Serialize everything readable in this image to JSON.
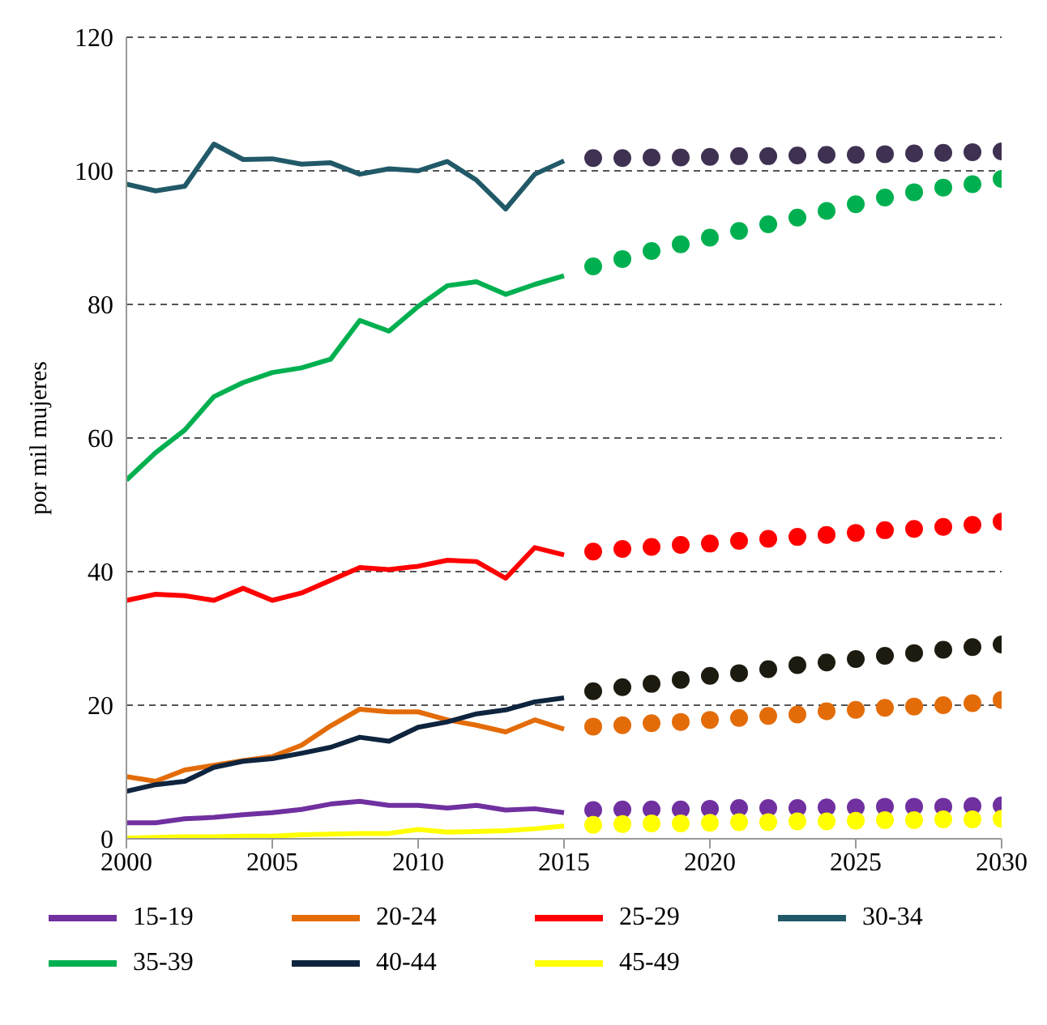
{
  "chart_data": {
    "type": "line",
    "ylabel": "por mil mujeres",
    "xlim": [
      2000,
      2030
    ],
    "xticks": [
      2000,
      2005,
      2010,
      2015,
      2020,
      2025,
      2030
    ],
    "ylim": [
      0,
      120
    ],
    "yticks": [
      0,
      20,
      40,
      60,
      80,
      100,
      120
    ],
    "grid": "y",
    "legend": "bottom",
    "x": [
      2000,
      2001,
      2002,
      2003,
      2004,
      2005,
      2006,
      2007,
      2008,
      2009,
      2010,
      2011,
      2012,
      2013,
      2014,
      2015
    ],
    "series": [
      {
        "name": "15-19",
        "color": "#7030a0",
        "values": [
          2.4,
          2.4,
          3,
          3.2,
          3.6,
          3.9,
          4.4,
          5.2,
          5.6,
          5,
          5,
          4.6,
          5,
          4.3,
          4.5,
          3.9
        ]
      },
      {
        "name": "20-24",
        "color": "#e36c09",
        "values": [
          9.3,
          8.6,
          10.3,
          11,
          11.7,
          12.3,
          14,
          16.9,
          19.4,
          19,
          19,
          17.8,
          17,
          16,
          17.8,
          16.4
        ]
      },
      {
        "name": "25-29",
        "color": "#ff0000",
        "values": [
          35.7,
          36.6,
          36.4,
          35.7,
          37.5,
          35.7,
          36.8,
          38.7,
          40.6,
          40.3,
          40.8,
          41.7,
          41.5,
          39,
          43.6,
          42.5
        ]
      },
      {
        "name": "30-34",
        "color": "#215968",
        "values": [
          98,
          97,
          97.7,
          104,
          101.7,
          101.8,
          101,
          101.2,
          99.5,
          100.3,
          100,
          101.4,
          98.6,
          94.3,
          99.5,
          101.5
        ]
      },
      {
        "name": "35-39",
        "color": "#00b050",
        "values": [
          53.7,
          57.8,
          61.2,
          66.2,
          68.3,
          69.8,
          70.5,
          71.8,
          77.6,
          76,
          79.7,
          82.8,
          83.4,
          81.5,
          83,
          84.3
        ]
      },
      {
        "name": "40-44",
        "color": "#0f243e",
        "values": [
          7.1,
          8.1,
          8.6,
          10.7,
          11.6,
          12,
          12.8,
          13.7,
          15.2,
          14.6,
          16.7,
          17.5,
          18.7,
          19.3,
          20.5,
          21.1
        ]
      },
      {
        "name": "45-49",
        "color": "#ffff00",
        "values": [
          0.1,
          0.2,
          0.3,
          0.3,
          0.4,
          0.4,
          0.6,
          0.7,
          0.8,
          0.8,
          1.4,
          1,
          1.1,
          1.2,
          1.5,
          1.9
        ]
      },
      {
        "type": "scatter",
        "color": "#7030a0",
        "x": [
          2016,
          2017,
          2018,
          2019,
          2020,
          2021,
          2022,
          2023,
          2024,
          2025,
          2026,
          2027,
          2028,
          2029,
          2030
        ],
        "values": [
          4.3,
          4.4,
          4.4,
          4.4,
          4.5,
          4.6,
          4.6,
          4.6,
          4.7,
          4.7,
          4.8,
          4.8,
          4.8,
          4.9,
          5.0
        ]
      },
      {
        "type": "scatter",
        "color": "#e36c09",
        "x": [
          2016,
          2017,
          2018,
          2019,
          2020,
          2021,
          2022,
          2023,
          2024,
          2025,
          2026,
          2027,
          2028,
          2029,
          2030
        ],
        "values": [
          16.8,
          17,
          17.3,
          17.5,
          17.8,
          18.1,
          18.4,
          18.6,
          19.1,
          19.3,
          19.6,
          19.8,
          20,
          20.3,
          20.8
        ]
      },
      {
        "type": "scatter",
        "color": "#ff0000",
        "x": [
          2016,
          2017,
          2018,
          2019,
          2020,
          2021,
          2022,
          2023,
          2024,
          2025,
          2026,
          2027,
          2028,
          2029,
          2030
        ],
        "values": [
          43,
          43.4,
          43.7,
          44,
          44.2,
          44.6,
          44.9,
          45.2,
          45.5,
          45.8,
          46.2,
          46.4,
          46.7,
          47,
          47.5
        ]
      },
      {
        "type": "scatter",
        "color": "#3f3151",
        "x": [
          2016,
          2017,
          2018,
          2019,
          2020,
          2021,
          2022,
          2023,
          2024,
          2025,
          2026,
          2027,
          2028,
          2029,
          2030
        ],
        "values": [
          101.9,
          101.9,
          102,
          102,
          102.1,
          102.2,
          102.2,
          102.3,
          102.4,
          102.4,
          102.5,
          102.6,
          102.7,
          102.8,
          102.9
        ]
      },
      {
        "type": "scatter",
        "color": "#00b050",
        "x": [
          2016,
          2017,
          2018,
          2019,
          2020,
          2021,
          2022,
          2023,
          2024,
          2025,
          2026,
          2027,
          2028,
          2029,
          2030
        ],
        "values": [
          85.7,
          86.8,
          88,
          89,
          90,
          91,
          92,
          93,
          94,
          95,
          96,
          96.8,
          97.5,
          98,
          98.8
        ]
      },
      {
        "type": "scatter",
        "color": "#1d1b10",
        "x": [
          2016,
          2017,
          2018,
          2019,
          2020,
          2021,
          2022,
          2023,
          2024,
          2025,
          2026,
          2027,
          2028,
          2029,
          2030
        ],
        "values": [
          22.1,
          22.7,
          23.2,
          23.8,
          24.4,
          24.8,
          25.4,
          26,
          26.4,
          26.9,
          27.4,
          27.8,
          28.3,
          28.7,
          29.1
        ]
      },
      {
        "type": "scatter",
        "color": "#ffff00",
        "x": [
          2016,
          2017,
          2018,
          2019,
          2020,
          2021,
          2022,
          2023,
          2024,
          2025,
          2026,
          2027,
          2028,
          2029,
          2030
        ],
        "values": [
          2.1,
          2.2,
          2.3,
          2.3,
          2.4,
          2.5,
          2.5,
          2.6,
          2.6,
          2.7,
          2.8,
          2.8,
          2.9,
          2.9,
          3.0
        ]
      }
    ]
  }
}
